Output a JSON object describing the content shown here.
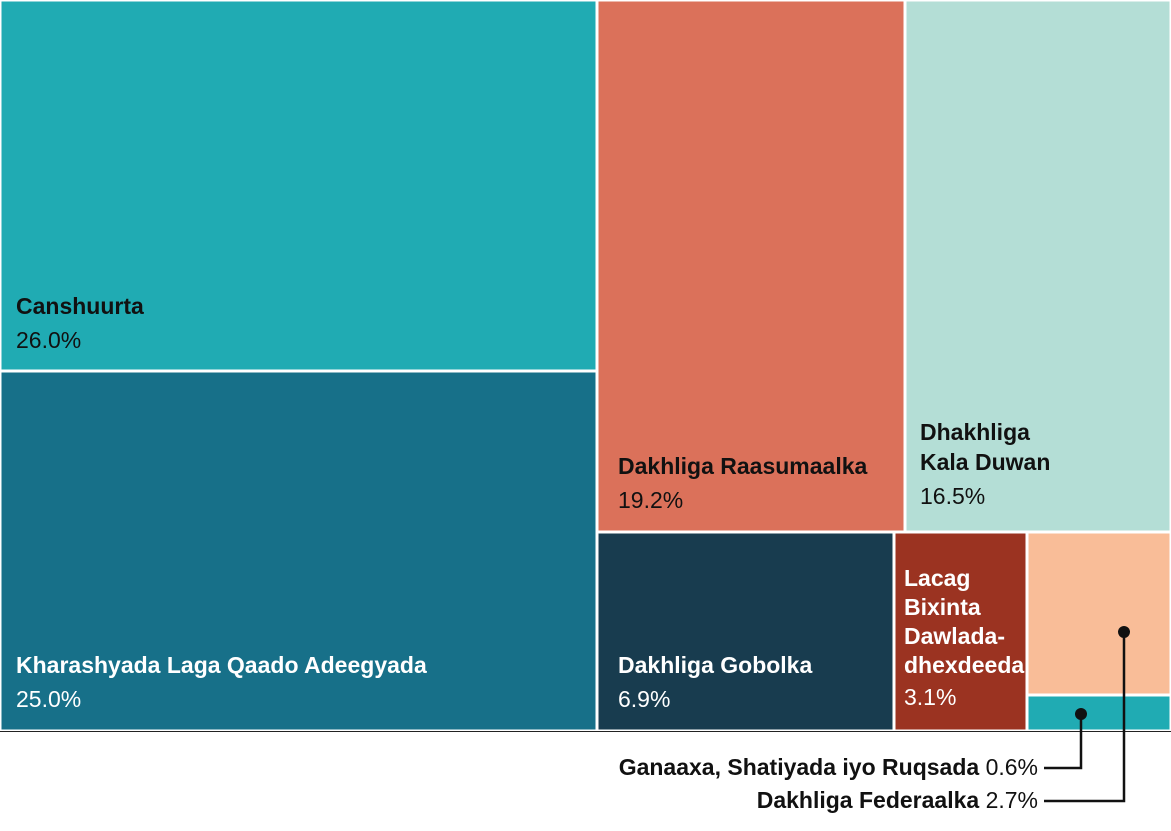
{
  "chart_data": {
    "type": "treemap",
    "title": "",
    "unit": "%",
    "items": [
      {
        "id": "canshuurta",
        "label_lines": [
          "Canshuurta"
        ],
        "value": 26.0,
        "value_text": "26.0%",
        "color": "#20abb3",
        "text_color": "#111111"
      },
      {
        "id": "kharashyada",
        "label_lines": [
          "Kharashyada Laga Qaado Adeegyada"
        ],
        "value": 25.0,
        "value_text": "25.0%",
        "color": "#177089",
        "text_color": "#ffffff"
      },
      {
        "id": "raasumaalka",
        "label_lines": [
          "Dakhliga Raasumaalka"
        ],
        "value": 19.2,
        "value_text": "19.2%",
        "color": "#db715a",
        "text_color": "#111111"
      },
      {
        "id": "kala-duwan",
        "label_lines": [
          "Dhakhliga",
          "Kala Duwan"
        ],
        "value": 16.5,
        "value_text": "16.5%",
        "color": "#b4ded6",
        "text_color": "#111111"
      },
      {
        "id": "gobolka",
        "label_lines": [
          "Dakhliga Gobolka"
        ],
        "value": 6.9,
        "value_text": "6.9%",
        "color": "#183c4f",
        "text_color": "#ffffff"
      },
      {
        "id": "lacag-bixinta",
        "label_lines": [
          "Lacag",
          "Bixinta",
          "Dawlada-",
          "dhexdeeda"
        ],
        "value": 3.1,
        "value_text": "3.1%",
        "color": "#9b3321",
        "text_color": "#ffffff"
      },
      {
        "id": "federaalka",
        "label_lines": [
          "Dakhliga Federaalka"
        ],
        "value": 2.7,
        "value_text": "2.7%",
        "color": "#f9bd98",
        "text_color": "#111111",
        "callout": true
      },
      {
        "id": "ganaaxa",
        "label_lines": [
          "Ganaaxa, Shatiyada iyo Ruqsada"
        ],
        "value": 0.6,
        "value_text": "0.6%",
        "color": "#20abb3",
        "text_color": "#111111",
        "callout": true
      }
    ]
  }
}
